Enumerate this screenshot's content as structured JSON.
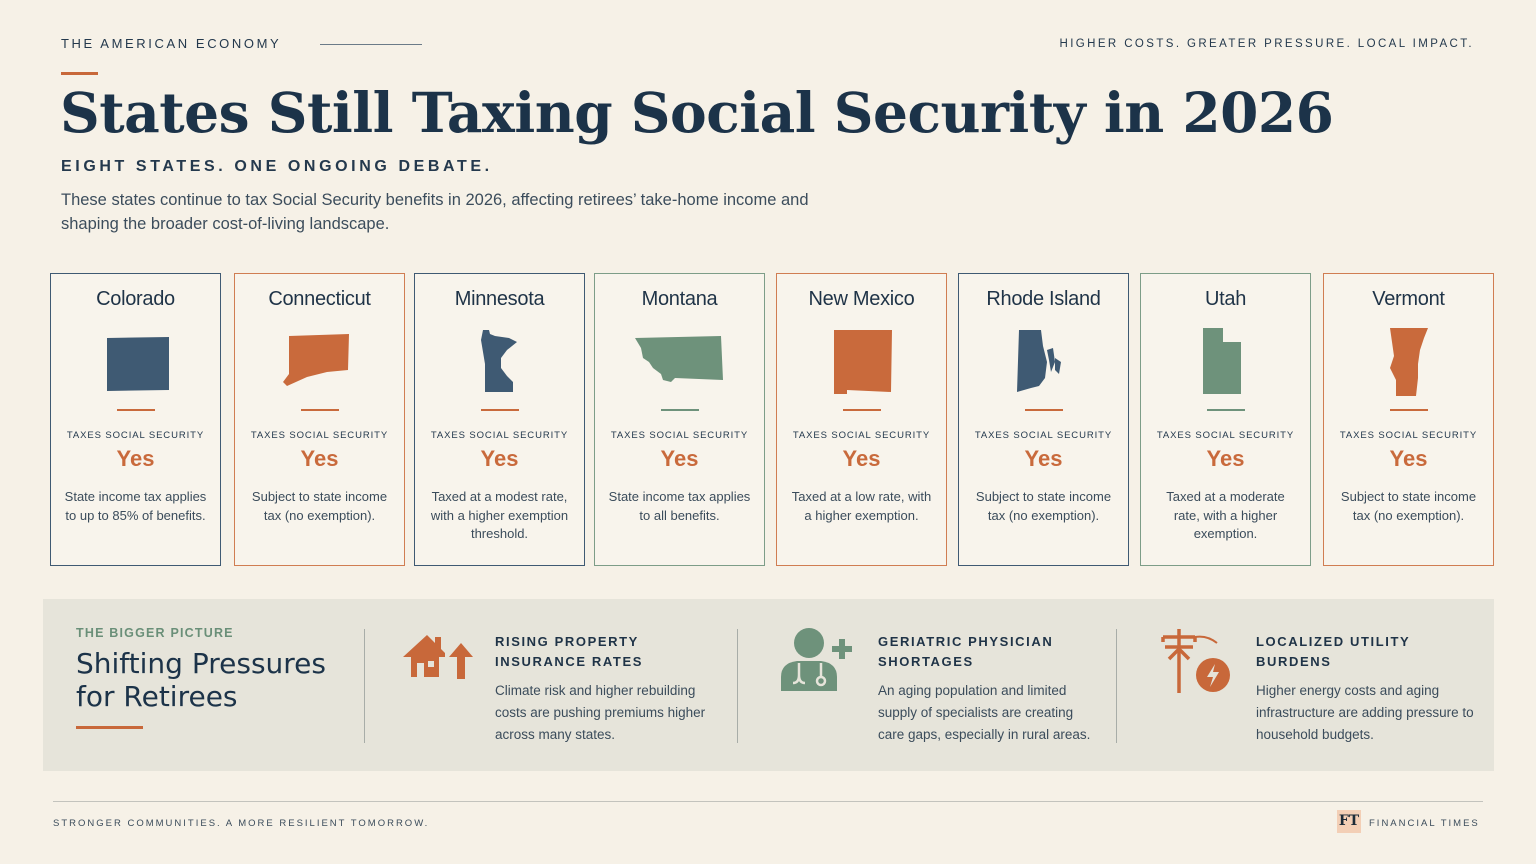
{
  "header": {
    "kicker": "THE AMERICAN ECONOMY",
    "tagline": "HIGHER COSTS. GREATER PRESSURE. LOCAL IMPACT.",
    "title": "States Still Taxing Social Security in 2026",
    "subtitle": "EIGHT STATES. ONE ONGOING DEBATE.",
    "intro": "These states continue to tax Social Security benefits in 2026, affecting retirees’ take-home income and shaping the broader cost-of-living landscape."
  },
  "colors": {
    "navy": "#3f5a73",
    "orange": "#c96a3c",
    "green": "#6e927b"
  },
  "states": [
    {
      "name": "Colorado",
      "label": "TAXES SOCIAL SECURITY",
      "value": "Yes",
      "desc": "State income tax applies to up to 85% of benefits.",
      "color": "navy",
      "icon": "colorado-shape-icon"
    },
    {
      "name": "Connecticut",
      "label": "TAXES SOCIAL SECURITY",
      "value": "Yes",
      "desc": "Subject to state income tax (no exemption).",
      "color": "orange",
      "icon": "connecticut-shape-icon"
    },
    {
      "name": "Minnesota",
      "label": "TAXES SOCIAL SECURITY",
      "value": "Yes",
      "desc": "Taxed at a modest rate, with a higher exemption threshold.",
      "color": "navy",
      "icon": "minnesota-shape-icon"
    },
    {
      "name": "Montana",
      "label": "TAXES SOCIAL SECURITY",
      "value": "Yes",
      "desc": "State income tax applies to all benefits.",
      "color": "green",
      "icon": "montana-shape-icon"
    },
    {
      "name": "New Mexico",
      "label": "TAXES SOCIAL SECURITY",
      "value": "Yes",
      "desc": "Taxed at a low rate, with a higher exemption.",
      "color": "orange",
      "icon": "new-mexico-shape-icon"
    },
    {
      "name": "Rhode Island",
      "label": "TAXES SOCIAL SECURITY",
      "value": "Yes",
      "desc": "Subject to state income tax (no exemption).",
      "color": "navy",
      "icon": "rhode-island-shape-icon"
    },
    {
      "name": "Utah",
      "label": "TAXES SOCIAL SECURITY",
      "value": "Yes",
      "desc": "Taxed at a moderate rate, with a higher exemption.",
      "color": "green",
      "icon": "utah-shape-icon"
    },
    {
      "name": "Vermont",
      "label": "TAXES SOCIAL SECURITY",
      "value": "Yes",
      "desc": "Subject to state income tax (no exemption).",
      "color": "orange",
      "icon": "vermont-shape-icon"
    }
  ],
  "panel": {
    "kicker": "THE BIGGER PICTURE",
    "title": "Shifting Pressures for Retirees",
    "features": [
      {
        "title": "RISING PROPERTY INSURANCE RATES",
        "desc": "Climate risk and higher rebuilding costs are pushing premiums higher across many states.",
        "icon": "house-arrow-icon"
      },
      {
        "title": "GERIATRIC PHYSICIAN SHORTAGES",
        "desc": "An aging population and limited supply of specialists are creating care gaps, especially in rural areas.",
        "icon": "doctor-plus-icon"
      },
      {
        "title": "LOCALIZED UTILITY BURDENS",
        "desc": "Higher energy costs and aging infrastructure are adding pressure to household budgets.",
        "icon": "utility-pole-icon"
      }
    ]
  },
  "footer": {
    "left": "STRONGER COMMUNITIES. A MORE RESILIENT TOMORROW.",
    "logo": "FT",
    "right": "FINANCIAL TIMES"
  }
}
